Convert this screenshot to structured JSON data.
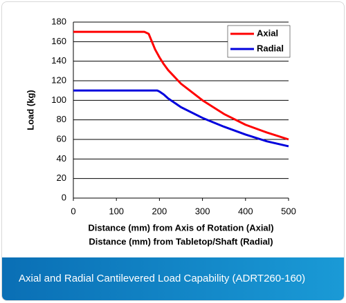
{
  "chart_data": {
    "type": "line",
    "ylabel": "Load (kg)",
    "xlabel": [
      "Distance (mm) from Axis of Rotation (Axial)",
      "Distance (mm) from Tabletop/Shaft (Radial)"
    ],
    "x": [
      0,
      100,
      150,
      165,
      175,
      190,
      195,
      200,
      210,
      220,
      250,
      300,
      350,
      400,
      450,
      500
    ],
    "series": [
      {
        "name": "Axial",
        "color": "#ff0000",
        "values": [
          170,
          170,
          170,
          170,
          168,
          152,
          148,
          144,
          137,
          131,
          117,
          100,
          86,
          75,
          67,
          60
        ]
      },
      {
        "name": "Radial",
        "color": "#0000dd",
        "values": [
          110,
          110,
          110,
          110,
          110,
          110,
          110,
          109,
          106,
          102,
          93,
          82,
          73,
          65,
          58,
          53
        ]
      }
    ],
    "xlim": [
      0,
      500
    ],
    "xticks": [
      0,
      100,
      200,
      300,
      400,
      500
    ],
    "ylim": [
      0,
      180
    ],
    "yticks": [
      0,
      20,
      40,
      60,
      80,
      100,
      120,
      140,
      160,
      180
    ],
    "grid": true,
    "legend": "top-right",
    "caption": "Axial and Radial Cantilevered Load Capability (ADRT260-160)"
  }
}
